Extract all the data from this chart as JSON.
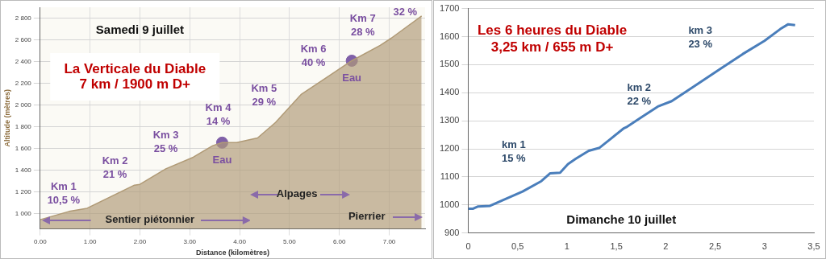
{
  "chart_data": [
    {
      "type": "area",
      "title": "La Verticale du Diable",
      "subtitle": "7 km / 1900 m D+",
      "xlabel": "Distance (kilomètres)",
      "ylabel": "Altitude (mètres)",
      "xlim": [
        0,
        7.72
      ],
      "ylim": [
        860,
        2900
      ],
      "xticks": [
        {
          "value": 0,
          "label": "0.00"
        },
        {
          "value": 1,
          "label": "1.00"
        },
        {
          "value": 2,
          "label": "2.00"
        },
        {
          "value": 3,
          "label": "3.00"
        },
        {
          "value": 4,
          "label": "4.00"
        },
        {
          "value": 5,
          "label": "5.00"
        },
        {
          "value": 6,
          "label": "6.00"
        },
        {
          "value": 7,
          "label": "7.00"
        }
      ],
      "yticks": [
        {
          "value": 1000,
          "label": "1 000"
        },
        {
          "value": 1200,
          "label": "1 200"
        },
        {
          "value": 1400,
          "label": "1 400"
        },
        {
          "value": 1600,
          "label": "1 600"
        },
        {
          "value": 1800,
          "label": "1 800"
        },
        {
          "value": 2000,
          "label": "2 000"
        },
        {
          "value": 2200,
          "label": "2 200"
        },
        {
          "value": 2400,
          "label": "2 400"
        },
        {
          "value": 2600,
          "label": "2 600"
        },
        {
          "value": 2800,
          "label": "2 800"
        }
      ],
      "grid": true,
      "legend": false,
      "series": [
        {
          "color": "#b09a76",
          "x": [
            0,
            0.58,
            0.94,
            1.89,
            2.0,
            2.52,
            3.07,
            3.46,
            3.65,
            3.94,
            4.36,
            4.72,
            5.24,
            5.78,
            6.25,
            6.82,
            7.04,
            7.65
          ],
          "values": [
            945,
            1021,
            1050,
            1263,
            1270,
            1413,
            1520,
            1626,
            1654,
            1654,
            1697,
            1840,
            2100,
            2265,
            2408,
            2550,
            2615,
            2820
          ]
        },
        {
          "type": "scatter",
          "color": "#8060a8",
          "marker": "circle",
          "x": [
            3.65,
            6.25
          ],
          "values": [
            1654,
            2408
          ]
        }
      ],
      "annotations": [
        "Samedi 9 juillet",
        "Sentier piétonnier",
        "Alpages",
        "Pierrier",
        "Km 1\n10,5 %",
        "Km 2\n21 %",
        "Km 3\n25 %",
        "Km 4\n14 %",
        "Km 5\n29 %",
        "Km 6\n40 %",
        "Km 7\n28 %",
        "32 %",
        {
          "text": "Eau",
          "x": 3.65,
          "y": 1654
        },
        {
          "text": "Eau",
          "x": 6.25,
          "y": 2408
        }
      ]
    },
    {
      "type": "line",
      "title": "Les 6 heures du Diable",
      "subtitle": "3,25 km / 655 m D+",
      "xlim": [
        0,
        3.5
      ],
      "ylim": [
        900,
        1700
      ],
      "xticks": [
        0,
        {
          "value": 0.5,
          "label": "0,5"
        },
        1,
        {
          "value": 1.5,
          "label": "1,5"
        },
        2,
        {
          "value": 2.5,
          "label": "2,5"
        },
        3,
        {
          "value": 3.5,
          "label": "3,5"
        }
      ],
      "yticks": [
        900,
        1000,
        1100,
        1200,
        1300,
        1400,
        1500,
        1600,
        1700
      ],
      "grid": "y",
      "legend": false,
      "series": [
        {
          "color": "#4a7ebb",
          "x": [
            0,
            0.05,
            0.1,
            0.22,
            0.35,
            0.55,
            0.74,
            0.83,
            0.93,
            1.01,
            1.09,
            1.22,
            1.33,
            1.44,
            1.57,
            1.6,
            1.76,
            1.92,
            2.06,
            2.3,
            2.56,
            2.78,
            3.0,
            3.16,
            3.24,
            3.31
          ],
          "values": [
            987,
            987,
            995,
            997,
            1017,
            1048,
            1085,
            1113,
            1115,
            1146,
            1165,
            1193,
            1204,
            1235,
            1272,
            1277,
            1314,
            1351,
            1370,
            1426,
            1487,
            1538,
            1585,
            1627,
            1644,
            1641
          ]
        }
      ],
      "annotations": [
        "Dimanche 10 juillet",
        "km 1\n15 %",
        "km 2\n22 %",
        "km 3\n23 %"
      ]
    }
  ]
}
